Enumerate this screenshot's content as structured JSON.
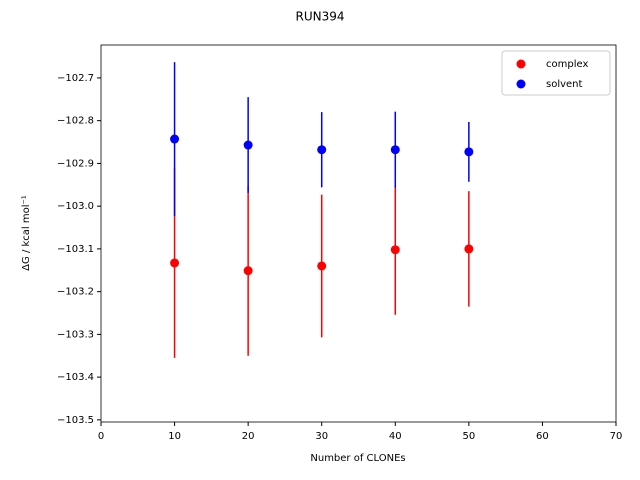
{
  "chart_data": {
    "type": "errorbar-scatter",
    "title": "RUN394",
    "x_label": "Number of CLONEs",
    "y_label": "ΔG / kcal mol⁻¹",
    "x": [
      10,
      20,
      30,
      40,
      50
    ],
    "series": [
      {
        "name": "complex",
        "color": "#ff0000",
        "values": [
          -103.133,
          -103.151,
          -103.14,
          -103.102,
          -103.1
        ],
        "errors": [
          0.222,
          0.199,
          0.167,
          0.152,
          0.135
        ]
      },
      {
        "name": "solvent",
        "color": "#0000ff",
        "values": [
          -102.843,
          -102.857,
          -102.868,
          -102.868,
          -102.873
        ],
        "errors": [
          0.18,
          0.112,
          0.088,
          0.089,
          0.07
        ]
      }
    ],
    "xlim": [
      0,
      70
    ],
    "xticks": [
      0,
      10,
      20,
      30,
      40,
      50,
      60,
      70
    ],
    "ylim": [
      -103.505,
      -102.623
    ],
    "yticks": [
      {
        "value": -102.7,
        "label": "−102.7"
      },
      {
        "value": -102.8,
        "label": "−102.8"
      },
      {
        "value": -102.9,
        "label": "−102.9"
      },
      {
        "value": -103.0,
        "label": "−103.0"
      },
      {
        "value": -103.1,
        "label": "−103.1"
      },
      {
        "value": -103.2,
        "label": "−103.2"
      },
      {
        "value": -103.3,
        "label": "−103.3"
      },
      {
        "value": -103.4,
        "label": "−103.4"
      },
      {
        "value": -103.5,
        "label": "−103.5"
      }
    ],
    "legend": "upper right",
    "grid": false
  }
}
